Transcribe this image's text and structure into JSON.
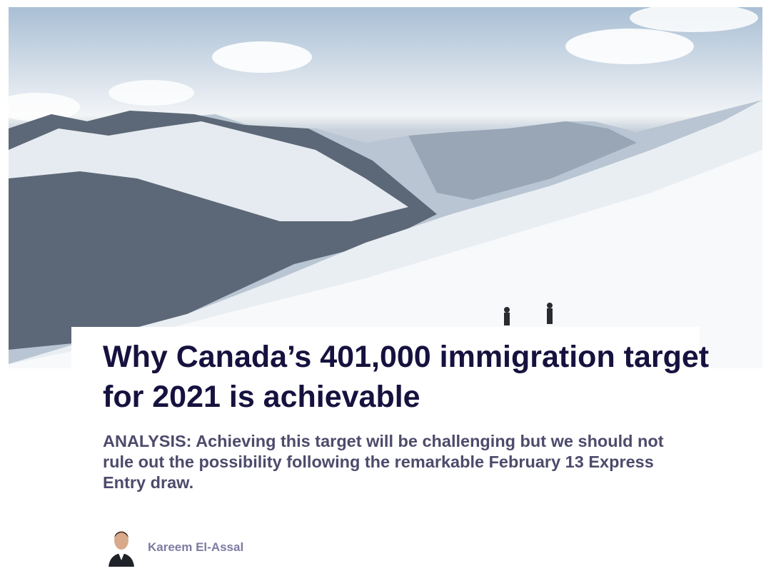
{
  "article": {
    "title": "Why Canada’s 401,000 immigration target for 2021 is achievable",
    "subtitle": "ANALYSIS: Achieving this target will be challenging but we should not rule out the possibility following the remarkable February 13 Express Entry draw.",
    "author": "Kareem El-Assal",
    "hero_image": "snowy-mountains-hikers",
    "colors": {
      "title": "#16123f",
      "subtitle": "#4d4b6b",
      "author": "#7d7aa2"
    }
  }
}
